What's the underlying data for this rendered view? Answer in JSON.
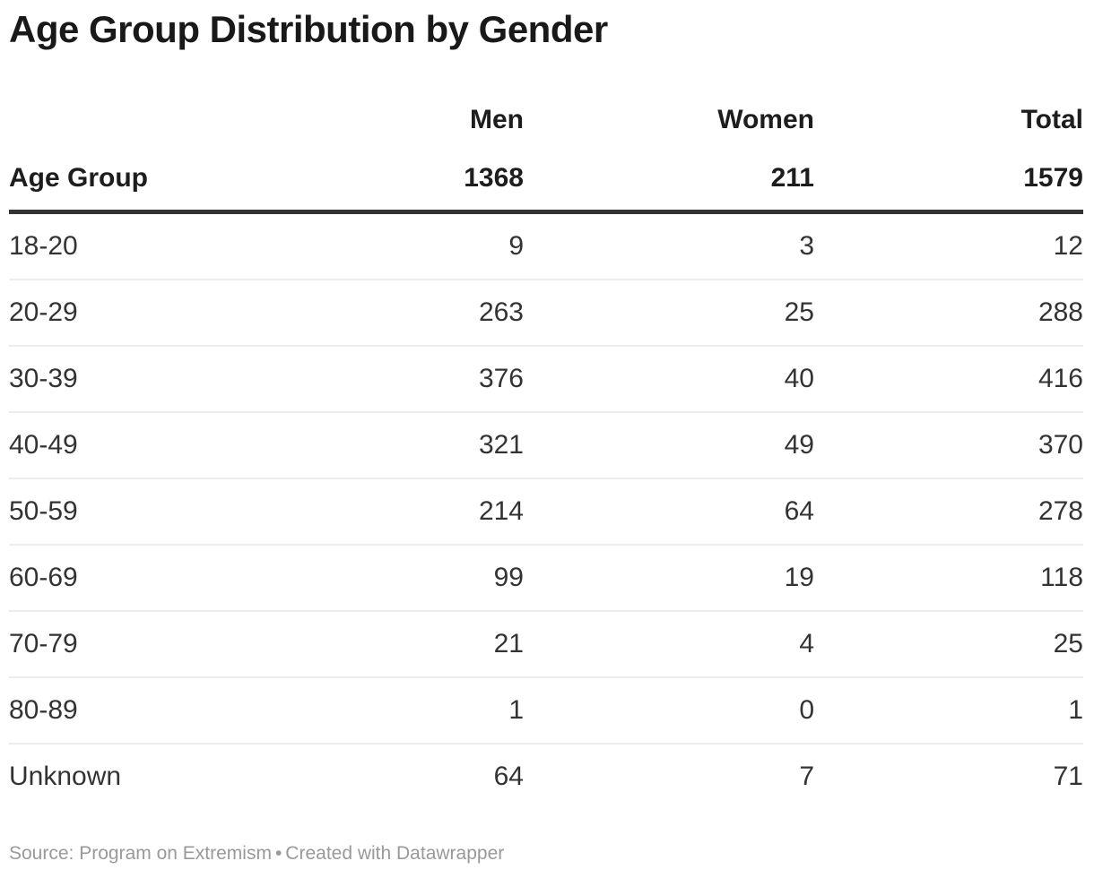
{
  "title": "Age Group Distribution by Gender",
  "chart_data": {
    "type": "table",
    "title": "Age Group Distribution by Gender",
    "columns": [
      "Age Group",
      "Men",
      "Women",
      "Total"
    ],
    "column_totals": {
      "men": "1368",
      "women": "211",
      "total": "1579"
    },
    "rows": [
      {
        "age": "18-20",
        "men": "9",
        "women": "3",
        "total": "12"
      },
      {
        "age": "20-29",
        "men": "263",
        "women": "25",
        "total": "288"
      },
      {
        "age": "30-39",
        "men": "376",
        "women": "40",
        "total": "416"
      },
      {
        "age": "40-49",
        "men": "321",
        "women": "49",
        "total": "370"
      },
      {
        "age": "50-59",
        "men": "214",
        "women": "64",
        "total": "278"
      },
      {
        "age": "60-69",
        "men": "99",
        "women": "19",
        "total": "118"
      },
      {
        "age": "70-79",
        "men": "21",
        "women": "4",
        "total": "25"
      },
      {
        "age": "80-89",
        "men": "1",
        "women": "0",
        "total": "1"
      },
      {
        "age": "Unknown",
        "men": "64",
        "women": "7",
        "total": "71"
      }
    ],
    "layout": {
      "grid": "horizontal-row-dividers",
      "numeric_alignment": "right"
    }
  },
  "footer": {
    "source_label": "Source: ",
    "source": "Program on Extremism",
    "separator": "•",
    "credit": "Created with Datawrapper"
  },
  "colors": {
    "title_text": "#191919",
    "header_text": "#1d1d1d",
    "body_text": "#333333",
    "header_rule": "#333333",
    "row_divider": "#ececec",
    "footer_text": "#999999",
    "background": "#ffffff"
  }
}
